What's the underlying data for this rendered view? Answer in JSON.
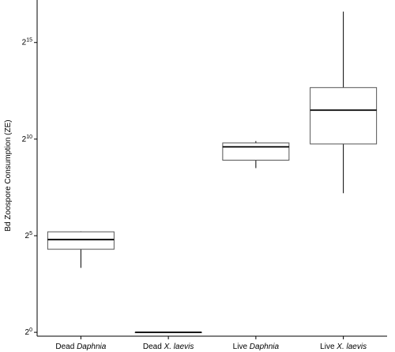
{
  "chart_data": {
    "type": "boxplot",
    "ylabel": "Bd Zoospore Consumption (ZE)",
    "yscale": "log2",
    "ylim_exponent": [
      -0.2,
      17.2
    ],
    "yticks": [
      {
        "base": "2",
        "exp": "0",
        "value": 1
      },
      {
        "base": "2",
        "exp": "5",
        "value": 32
      },
      {
        "base": "2",
        "exp": "10",
        "value": 1024
      },
      {
        "base": "2",
        "exp": "15",
        "value": 32768
      }
    ],
    "categories": [
      {
        "prefix": "Dead ",
        "italic": "Daphnia",
        "suffix": ""
      },
      {
        "prefix": "Dead ",
        "italic": "X. laevis",
        "suffix": ""
      },
      {
        "prefix": "Live ",
        "italic": "Daphnia",
        "suffix": ""
      },
      {
        "prefix": "Live ",
        "italic": "X. laevis",
        "suffix": ""
      }
    ],
    "boxes": [
      {
        "min": 10.1,
        "q1": 19.7,
        "median": 27.9,
        "q3": 36.8,
        "max": 37.5
      },
      {
        "min": 1,
        "q1": 1,
        "median": 1,
        "q3": 1,
        "max": 1
      },
      {
        "min": 362,
        "q1": 481,
        "median": 776,
        "q3": 891,
        "max": 955
      },
      {
        "min": 147,
        "q1": 861,
        "median": 2896,
        "q3": 6502,
        "max": 99334
      }
    ],
    "grid": false,
    "legend": "none"
  }
}
